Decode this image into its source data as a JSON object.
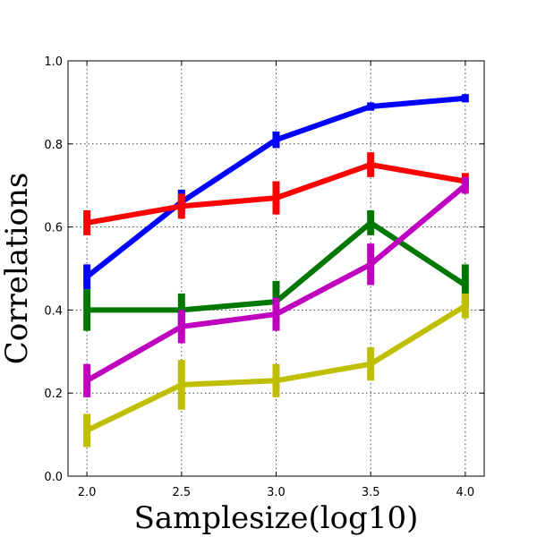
{
  "chart_data": {
    "type": "line",
    "title": "",
    "xlabel": "Samplesize(log10)",
    "ylabel": "Correlations",
    "x": [
      2.0,
      2.5,
      3.0,
      3.5,
      4.0
    ],
    "xticks": [
      "2.0",
      "2.5",
      "3.0",
      "3.5",
      "4.0"
    ],
    "yticks": [
      "0.0",
      "0.2",
      "0.4",
      "0.6",
      "0.8",
      "1.0"
    ],
    "xlim": [
      1.9,
      4.1
    ],
    "ylim": [
      0.0,
      1.0
    ],
    "grid": true,
    "series": [
      {
        "name": "blue",
        "color": "#0000ff",
        "values": [
          0.48,
          0.66,
          0.81,
          0.89,
          0.91
        ],
        "errors": [
          0.03,
          0.03,
          0.02,
          0.01,
          0.01
        ]
      },
      {
        "name": "red",
        "color": "#ff0000",
        "values": [
          0.61,
          0.65,
          0.67,
          0.75,
          0.71
        ],
        "errors": [
          0.03,
          0.03,
          0.04,
          0.03,
          0.02
        ]
      },
      {
        "name": "green",
        "color": "#007700",
        "values": [
          0.4,
          0.4,
          0.42,
          0.61,
          0.46
        ],
        "errors": [
          0.05,
          0.04,
          0.05,
          0.03,
          0.05
        ]
      },
      {
        "name": "magenta",
        "color": "#bf00bf",
        "values": [
          0.23,
          0.36,
          0.39,
          0.51,
          0.7
        ],
        "errors": [
          0.04,
          0.04,
          0.04,
          0.05,
          0.02
        ]
      },
      {
        "name": "yellow",
        "color": "#bfbf00",
        "values": [
          0.11,
          0.22,
          0.23,
          0.27,
          0.41
        ],
        "errors": [
          0.04,
          0.06,
          0.04,
          0.04,
          0.03
        ]
      }
    ]
  }
}
